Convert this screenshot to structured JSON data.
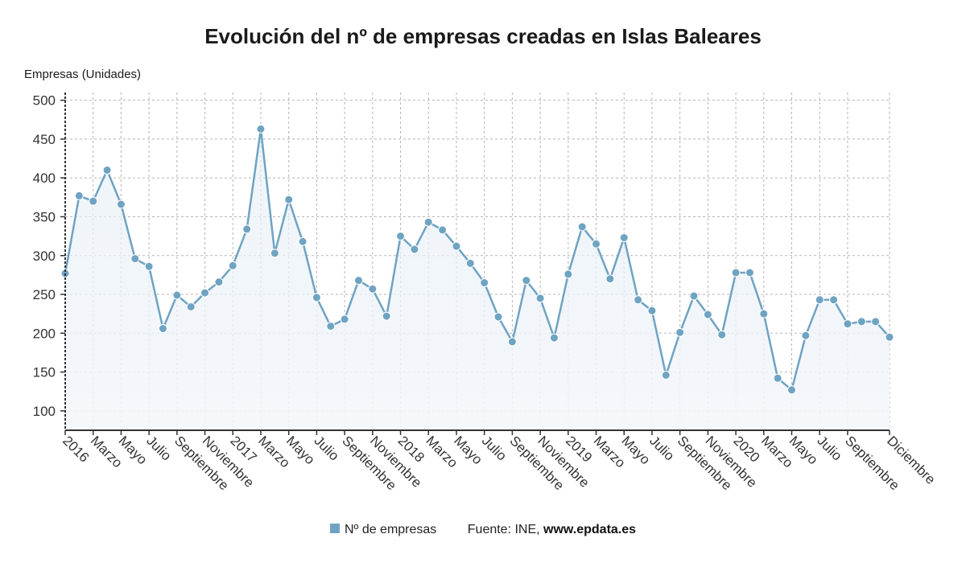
{
  "chart_data": {
    "type": "line",
    "title": "Evolución del nº de empresas creadas en Islas Baleares",
    "ylabel": "Empresas (Unidades)",
    "xlabel": "",
    "ylim": [
      75,
      510
    ],
    "yticks": [
      100,
      150,
      200,
      250,
      300,
      350,
      400,
      450,
      500
    ],
    "grid": true,
    "legend_position": "bottom",
    "x_tick_labels": [
      "2016",
      "Marzo",
      "Mayo",
      "Julio",
      "Septiembre",
      "Noviembre",
      "2017",
      "Marzo",
      "Mayo",
      "Julio",
      "Septiembre",
      "Noviembre",
      "2018",
      "Marzo",
      "Mayo",
      "Julio",
      "Septiembre",
      "Noviembre",
      "2019",
      "Marzo",
      "Mayo",
      "Julio",
      "Septiembre",
      "Noviembre",
      "2020",
      "Marzo",
      "Mayo",
      "Julio",
      "Septiembre",
      "Diciembre"
    ],
    "x_tick_positions": [
      0,
      2,
      4,
      6,
      8,
      10,
      12,
      14,
      16,
      18,
      20,
      22,
      24,
      26,
      28,
      30,
      32,
      34,
      36,
      38,
      40,
      42,
      44,
      46,
      48,
      50,
      52,
      54,
      56,
      59
    ],
    "x": [
      "2016-01",
      "2016-02",
      "2016-03",
      "2016-04",
      "2016-05",
      "2016-06",
      "2016-07",
      "2016-08",
      "2016-09",
      "2016-10",
      "2016-11",
      "2016-12",
      "2017-01",
      "2017-02",
      "2017-03",
      "2017-04",
      "2017-05",
      "2017-06",
      "2017-07",
      "2017-08",
      "2017-09",
      "2017-10",
      "2017-11",
      "2017-12",
      "2018-01",
      "2018-02",
      "2018-03",
      "2018-04",
      "2018-05",
      "2018-06",
      "2018-07",
      "2018-08",
      "2018-09",
      "2018-10",
      "2018-11",
      "2018-12",
      "2019-01",
      "2019-02",
      "2019-03",
      "2019-04",
      "2019-05",
      "2019-06",
      "2019-07",
      "2019-08",
      "2019-09",
      "2019-10",
      "2019-11",
      "2019-12",
      "2020-01",
      "2020-02",
      "2020-03",
      "2020-04",
      "2020-05",
      "2020-06",
      "2020-07",
      "2020-08",
      "2020-09",
      "2020-10",
      "2020-11",
      "2020-12"
    ],
    "series": [
      {
        "name": "Nº de empresas",
        "color": "#6fa3c2",
        "values": [
          277,
          377,
          370,
          410,
          366,
          296,
          286,
          206,
          249,
          234,
          252,
          266,
          287,
          334,
          463,
          303,
          372,
          318,
          246,
          209,
          218,
          268,
          257,
          222,
          325,
          308,
          343,
          333,
          312,
          290,
          265,
          221,
          189,
          268,
          245,
          194,
          276,
          337,
          315,
          270,
          323,
          243,
          229,
          146,
          201,
          248,
          224,
          198,
          278,
          278,
          225,
          142,
          127,
          197,
          243,
          243,
          212,
          215,
          215,
          195
        ]
      }
    ]
  },
  "legend": {
    "series_label": "Nº de empresas",
    "source_prefix": "Fuente: INE, ",
    "source_brand": "www.epdata.es"
  }
}
